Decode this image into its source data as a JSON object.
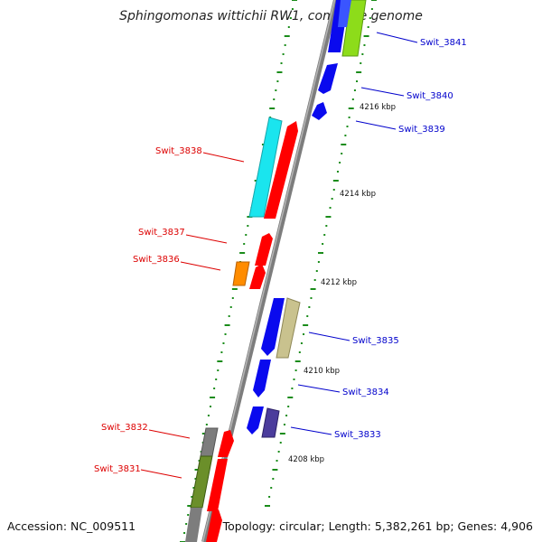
{
  "title": "Sphingomonas wittichii RW1, complete genome",
  "footer": {
    "accession": "Accession: NC_009511",
    "topology": "Topology: circular; Length: 5,382,261 bp; Genes: 4,906"
  },
  "colors": {
    "backbone": "#8a8a8a",
    "tick": "#1a8c1a",
    "forward_label": "#0000cc",
    "reverse_label": "#dd0000"
  },
  "scale_labels": [
    "4216 kbp",
    "4214 kbp",
    "4212 kbp",
    "4210 kbp",
    "4208 kbp"
  ],
  "genes": [
    {
      "id": "Swit_3841",
      "strand": "forward"
    },
    {
      "id": "Swit_3840",
      "strand": "forward"
    },
    {
      "id": "Swit_3839",
      "strand": "forward"
    },
    {
      "id": "Swit_3838",
      "strand": "reverse"
    },
    {
      "id": "Swit_3837",
      "strand": "reverse"
    },
    {
      "id": "Swit_3836",
      "strand": "reverse"
    },
    {
      "id": "Swit_3835",
      "strand": "forward"
    },
    {
      "id": "Swit_3834",
      "strand": "forward"
    },
    {
      "id": "Swit_3833",
      "strand": "forward"
    },
    {
      "id": "Swit_3832",
      "strand": "reverse"
    },
    {
      "id": "Swit_3831",
      "strand": "reverse"
    }
  ]
}
